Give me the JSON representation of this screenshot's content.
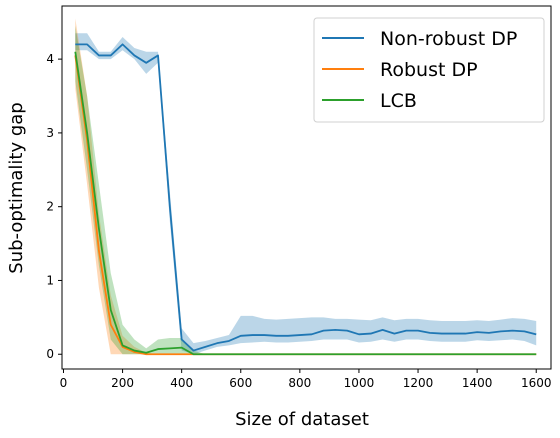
{
  "chart_data": {
    "type": "line",
    "xlabel": "Size of dataset",
    "ylabel": "Sub-optimality gap",
    "xlim": [
      -5,
      1650
    ],
    "ylim": [
      -0.2,
      4.72
    ],
    "xticks": [
      0,
      200,
      400,
      600,
      800,
      1000,
      1200,
      1400,
      1600
    ],
    "yticks": [
      0,
      1,
      2,
      3,
      4
    ],
    "legend_position": "top-right",
    "series": [
      {
        "name": "Non-robust DP",
        "color": "#1f77b4",
        "x": [
          40,
          80,
          120,
          160,
          200,
          240,
          280,
          320,
          360,
          400,
          440,
          480,
          520,
          560,
          600,
          640,
          680,
          720,
          760,
          800,
          840,
          880,
          920,
          960,
          1000,
          1040,
          1080,
          1120,
          1160,
          1200,
          1240,
          1280,
          1320,
          1360,
          1400,
          1440,
          1480,
          1520,
          1560,
          1600
        ],
        "y": [
          4.2,
          4.2,
          4.05,
          4.05,
          4.2,
          4.05,
          3.95,
          4.05,
          2.0,
          0.2,
          0.05,
          0.1,
          0.15,
          0.18,
          0.25,
          0.26,
          0.26,
          0.25,
          0.25,
          0.26,
          0.27,
          0.32,
          0.33,
          0.32,
          0.27,
          0.28,
          0.33,
          0.28,
          0.32,
          0.32,
          0.29,
          0.28,
          0.28,
          0.28,
          0.3,
          0.29,
          0.31,
          0.32,
          0.31,
          0.27
        ],
        "band_low": [
          4.12,
          4.12,
          4.0,
          4.0,
          4.12,
          4.0,
          3.8,
          3.95,
          1.8,
          0.05,
          0.0,
          0.05,
          0.1,
          0.12,
          0.15,
          0.16,
          0.17,
          0.16,
          0.16,
          0.17,
          0.18,
          0.2,
          0.2,
          0.2,
          0.16,
          0.17,
          0.2,
          0.17,
          0.2,
          0.2,
          0.18,
          0.17,
          0.17,
          0.17,
          0.19,
          0.18,
          0.19,
          0.2,
          0.18,
          0.12
        ],
        "band_high": [
          4.35,
          4.35,
          4.1,
          4.1,
          4.3,
          4.15,
          4.1,
          4.1,
          2.2,
          0.35,
          0.15,
          0.18,
          0.22,
          0.26,
          0.52,
          0.52,
          0.48,
          0.47,
          0.48,
          0.49,
          0.5,
          0.5,
          0.48,
          0.48,
          0.47,
          0.46,
          0.5,
          0.46,
          0.48,
          0.48,
          0.46,
          0.45,
          0.45,
          0.45,
          0.46,
          0.45,
          0.47,
          0.49,
          0.48,
          0.45
        ]
      },
      {
        "name": "Robust DP",
        "color": "#ff7f0e",
        "x": [
          40,
          80,
          120,
          160,
          200,
          240,
          280,
          320,
          360,
          400,
          440,
          480,
          520,
          560,
          600,
          640,
          680,
          720,
          760,
          800,
          840,
          880,
          920,
          960,
          1000,
          1040,
          1080,
          1120,
          1160,
          1200,
          1240,
          1280,
          1320,
          1360,
          1400,
          1440,
          1480,
          1520,
          1560,
          1600
        ],
        "y": [
          4.05,
          2.9,
          1.4,
          0.4,
          0.1,
          0.03,
          0.0,
          0.0,
          0.0,
          0.0,
          0.0,
          0.0,
          0.0,
          0.0,
          0.0,
          0.0,
          0.0,
          0.0,
          0.0,
          0.0,
          0.0,
          0.0,
          0.0,
          0.0,
          0.0,
          0.0,
          0.0,
          0.0,
          0.0,
          0.0,
          0.0,
          0.0,
          0.0,
          0.0,
          0.0,
          0.0,
          0.0,
          0.0,
          0.0,
          0.0
        ],
        "band_low": [
          3.6,
          2.3,
          0.9,
          0.0,
          0.0,
          0.0,
          0.0,
          0.0,
          0.0,
          0.0,
          0.0,
          0.0,
          0.0,
          0.0,
          0.0,
          0.0,
          0.0,
          0.0,
          0.0,
          0.0,
          0.0,
          0.0,
          0.0,
          0.0,
          0.0,
          0.0,
          0.0,
          0.0,
          0.0,
          0.0,
          0.0,
          0.0,
          0.0,
          0.0,
          0.0,
          0.0,
          0.0,
          0.0,
          0.0,
          0.0
        ],
        "band_high": [
          4.55,
          3.5,
          1.9,
          0.8,
          0.25,
          0.1,
          0.02,
          0.0,
          0.0,
          0.0,
          0.0,
          0.0,
          0.0,
          0.0,
          0.0,
          0.0,
          0.0,
          0.0,
          0.0,
          0.0,
          0.0,
          0.0,
          0.0,
          0.0,
          0.0,
          0.0,
          0.0,
          0.0,
          0.0,
          0.0,
          0.0,
          0.0,
          0.0,
          0.0,
          0.0,
          0.0,
          0.0,
          0.0,
          0.0,
          0.0
        ]
      },
      {
        "name": "LCB",
        "color": "#2ca02c",
        "x": [
          40,
          80,
          120,
          160,
          200,
          240,
          280,
          320,
          360,
          400,
          440,
          480,
          520,
          560,
          600,
          640,
          680,
          720,
          760,
          800,
          840,
          880,
          920,
          960,
          1000,
          1040,
          1080,
          1120,
          1160,
          1200,
          1240,
          1280,
          1320,
          1360,
          1400,
          1440,
          1480,
          1520,
          1560,
          1600
        ],
        "y": [
          4.1,
          3.0,
          1.7,
          0.6,
          0.12,
          0.05,
          0.02,
          0.07,
          0.08,
          0.09,
          0.0,
          0.0,
          0.0,
          0.0,
          0.0,
          0.0,
          0.0,
          0.0,
          0.0,
          0.0,
          0.0,
          0.0,
          0.0,
          0.0,
          0.0,
          0.0,
          0.0,
          0.0,
          0.0,
          0.0,
          0.0,
          0.0,
          0.0,
          0.0,
          0.0,
          0.0,
          0.0,
          0.0,
          0.0,
          0.0
        ],
        "band_low": [
          3.7,
          2.5,
          1.2,
          0.2,
          0.0,
          0.0,
          0.0,
          0.0,
          0.0,
          0.0,
          0.0,
          0.0,
          0.0,
          0.0,
          0.0,
          0.0,
          0.0,
          0.0,
          0.0,
          0.0,
          0.0,
          0.0,
          0.0,
          0.0,
          0.0,
          0.0,
          0.0,
          0.0,
          0.0,
          0.0,
          0.0,
          0.0,
          0.0,
          0.0,
          0.0,
          0.0,
          0.0,
          0.0,
          0.0,
          0.0
        ],
        "band_high": [
          4.45,
          3.5,
          2.3,
          1.1,
          0.4,
          0.2,
          0.08,
          0.2,
          0.22,
          0.22,
          0.05,
          0.0,
          0.0,
          0.0,
          0.0,
          0.0,
          0.0,
          0.0,
          0.0,
          0.0,
          0.0,
          0.0,
          0.0,
          0.0,
          0.0,
          0.0,
          0.0,
          0.0,
          0.0,
          0.0,
          0.0,
          0.0,
          0.0,
          0.0,
          0.0,
          0.0,
          0.0,
          0.0,
          0.0,
          0.0
        ]
      }
    ]
  }
}
